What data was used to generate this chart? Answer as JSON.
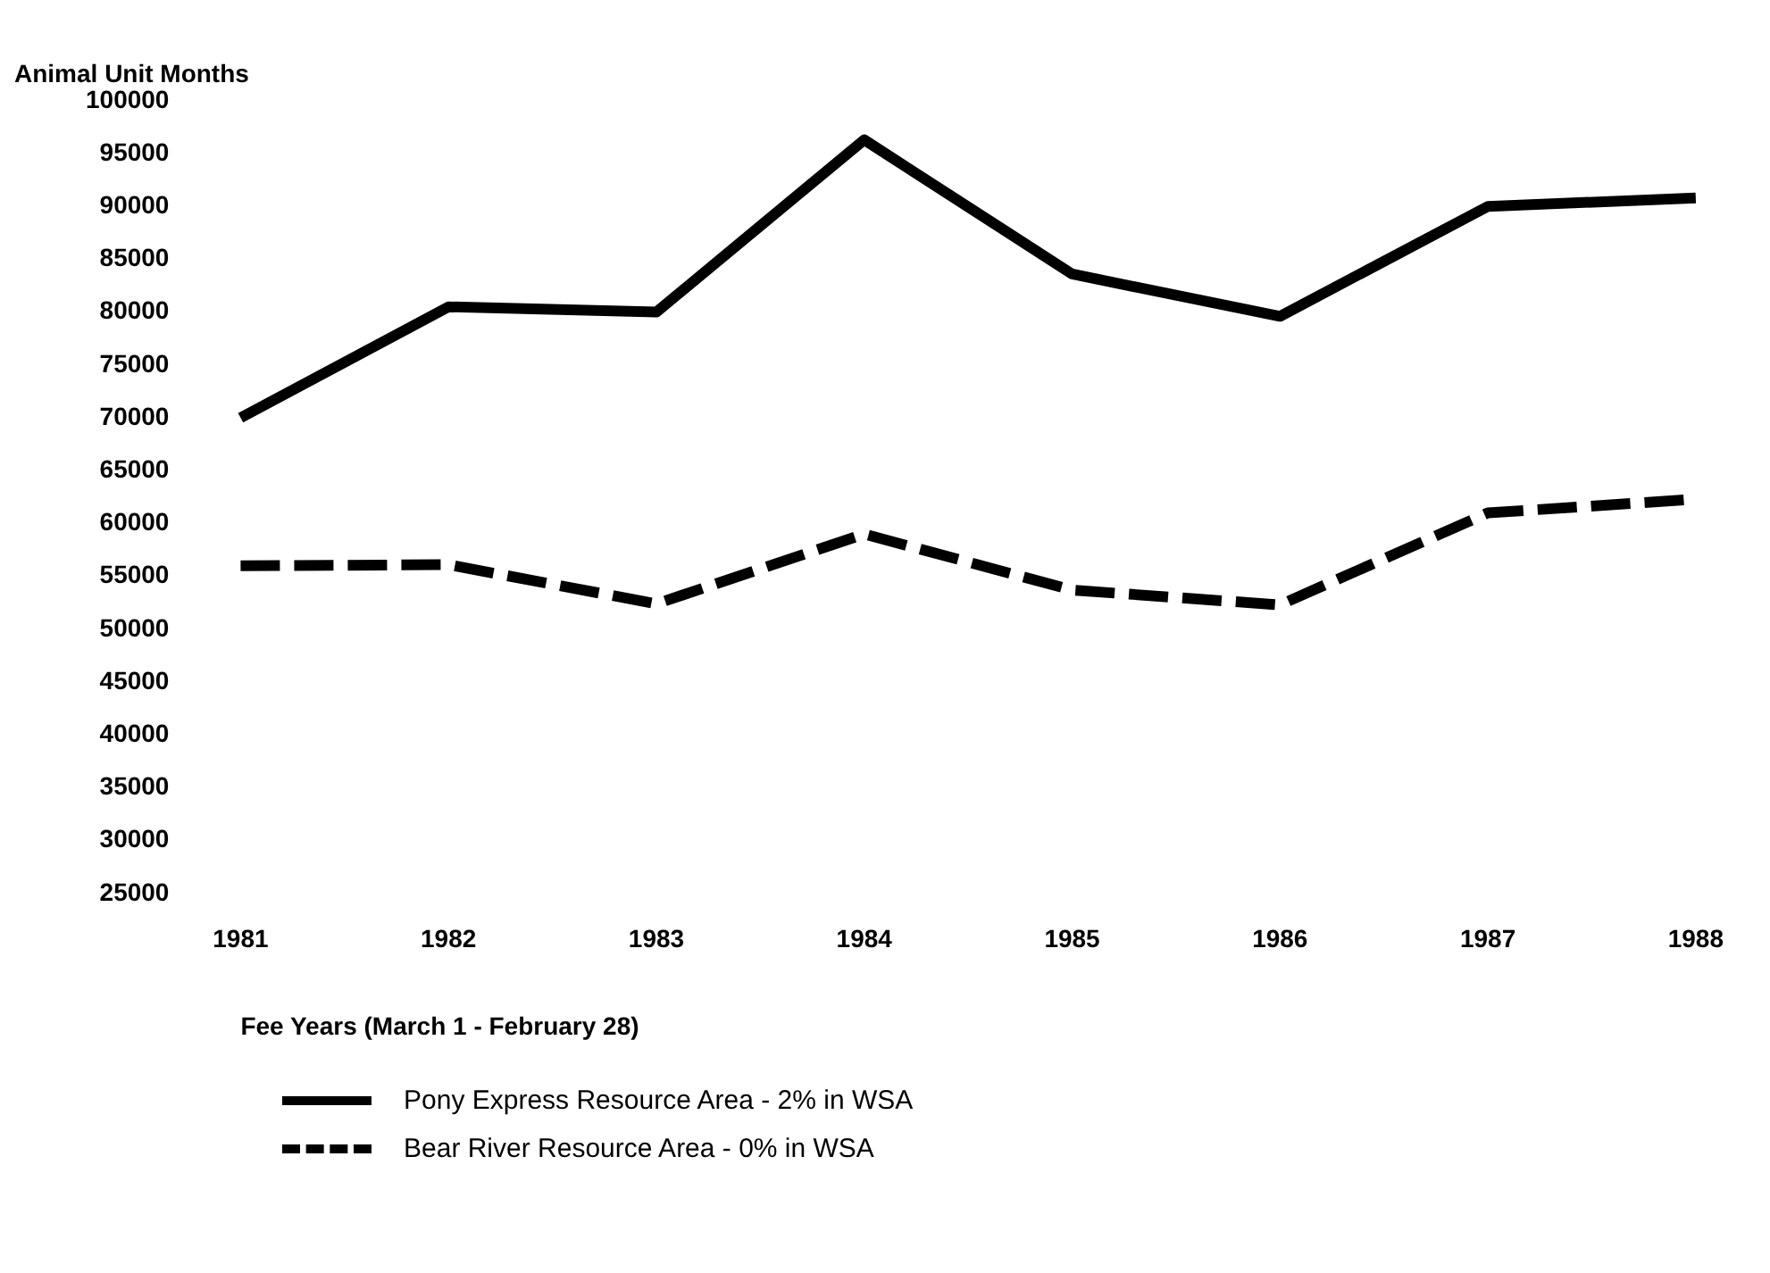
{
  "chart_data": {
    "type": "line",
    "ylabel": "Animal Unit Months",
    "xlabel": "Fee Years (March 1 - February 28)",
    "categories": [
      "1981",
      "1982",
      "1983",
      "1984",
      "1985",
      "1986",
      "1987",
      "1988"
    ],
    "series": [
      {
        "name": "Pony Express Resource Area - 2% in WSA",
        "color": "#000000",
        "line_style": "solid",
        "values": [
          70000,
          80500,
          80000,
          96300,
          83600,
          79600,
          90000,
          90800
        ]
      },
      {
        "name": "Bear River Resource Area - 0% in WSA",
        "color": "#000000",
        "line_style": "dashed",
        "values": [
          56000,
          56100,
          52400,
          59000,
          53700,
          52300,
          61000,
          62300
        ]
      }
    ],
    "ylim": [
      25000,
      100000
    ],
    "yticks": [
      25000,
      30000,
      35000,
      40000,
      45000,
      50000,
      55000,
      60000,
      65000,
      70000,
      75000,
      80000,
      85000,
      90000,
      95000,
      100000
    ],
    "grid": false,
    "legend": "bottom left",
    "marker": "none"
  }
}
